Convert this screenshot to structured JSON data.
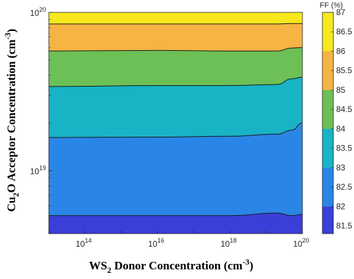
{
  "chart_data": {
    "type": "contour",
    "xlabel": {
      "base": "WS",
      "sub": "2",
      "mid": " Donor Concentration (cm",
      "sup": "-3",
      "end": ")"
    },
    "ylabel": {
      "base": "Cu",
      "sub": "2",
      "mid": "O Acceptor Concentration (cm",
      "sup": "-3",
      "end": ")"
    },
    "x_scale": "log",
    "y_scale": "log",
    "xlim": [
      10000000000000.0,
      1e+20
    ],
    "ylim": [
      4e+18,
      1e+20
    ],
    "x_ticks": [
      {
        "value": 100000000000000.0,
        "base": "10",
        "exp": "14"
      },
      {
        "value": 1e+16,
        "base": "10",
        "exp": "16"
      },
      {
        "value": 1e+18,
        "base": "10",
        "exp": "18"
      },
      {
        "value": 1e+20,
        "base": "10",
        "exp": "20"
      }
    ],
    "y_ticks": [
      {
        "value": 1e+19,
        "base": "10",
        "exp": "19"
      },
      {
        "value": 1e+20,
        "base": "10",
        "exp": "20"
      }
    ],
    "colorbar": {
      "title": "FF (%)",
      "range": [
        81.3,
        87.0
      ],
      "ticks": [
        "81.5",
        "82",
        "82.5",
        "83",
        "83.5",
        "84",
        "84.5",
        "85",
        "85.5",
        "86",
        "86.5",
        "87"
      ]
    },
    "contour_levels": [
      {
        "level": 82.0,
        "color": "#3a3fd8",
        "y_at_x": [
          [
            10000000000000.0,
            5.2e+18
          ],
          [
            1e+16,
            5.2e+18
          ],
          [
            1e+18,
            5.2e+18
          ],
          [
            2e+19,
            5.4e+18
          ],
          [
            5e+19,
            5.2e+18
          ],
          [
            1e+20,
            5.3e+18
          ]
        ]
      },
      {
        "level": 83.0,
        "color": "#2a86e6",
        "y_at_x": [
          [
            10000000000000.0,
            1.62e+19
          ],
          [
            1e+16,
            1.63e+19
          ],
          [
            1e+18,
            1.65e+19
          ],
          [
            2e+19,
            1.7e+19
          ],
          [
            5e+19,
            1.8e+19
          ],
          [
            1e+20,
            2e+19
          ]
        ]
      },
      {
        "level": 84.0,
        "color": "#18b3c5",
        "y_at_x": [
          [
            10000000000000.0,
            3.4e+19
          ],
          [
            1e+16,
            3.45e+19
          ],
          [
            1e+18,
            3.45e+19
          ],
          [
            2e+19,
            3.5e+19
          ],
          [
            5e+19,
            3.8e+19
          ],
          [
            1e+20,
            3.9e+19
          ]
        ]
      },
      {
        "level": 85.0,
        "color": "#6cc055",
        "y_at_x": [
          [
            10000000000000.0,
            5.7e+19
          ],
          [
            1e+16,
            5.75e+19
          ],
          [
            1e+18,
            5.7e+19
          ],
          [
            2e+19,
            5.7e+19
          ],
          [
            5e+19,
            5.95e+19
          ],
          [
            1e+20,
            6e+19
          ]
        ]
      },
      {
        "level": 86.0,
        "color": "#f5b443",
        "y_at_x": [
          [
            10000000000000.0,
            8.45e+19
          ],
          [
            1e+16,
            8.45e+19
          ],
          [
            1e+18,
            8.45e+19
          ],
          [
            2e+19,
            8.45e+19
          ],
          [
            5e+19,
            8.5e+19
          ],
          [
            1e+20,
            8.5e+19
          ]
        ]
      },
      {
        "level": 87.0,
        "color": "#f6e81c",
        "y_at_x": [
          [
            10000000000000.0,
            1e+20
          ],
          [
            1e+20,
            1e+20
          ]
        ]
      }
    ],
    "lowest_region_color": "#3a3fd8"
  }
}
